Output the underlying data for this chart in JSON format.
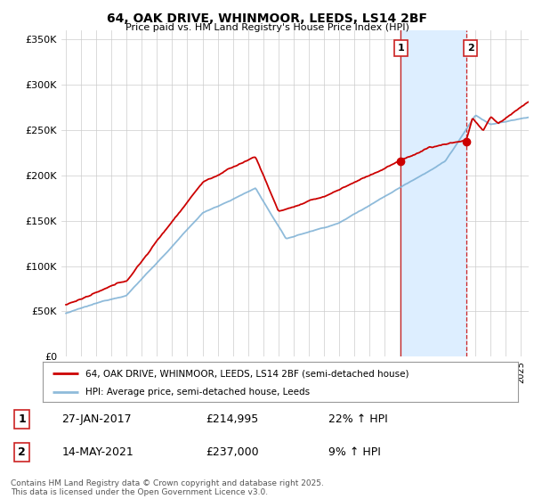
{
  "title": "64, OAK DRIVE, WHINMOOR, LEEDS, LS14 2BF",
  "subtitle": "Price paid vs. HM Land Registry's House Price Index (HPI)",
  "legend_line1": "64, OAK DRIVE, WHINMOOR, LEEDS, LS14 2BF (semi-detached house)",
  "legend_line2": "HPI: Average price, semi-detached house, Leeds",
  "annotation1_label": "1",
  "annotation1_date": "27-JAN-2017",
  "annotation1_price": "£214,995",
  "annotation1_hpi": "22% ↑ HPI",
  "annotation2_label": "2",
  "annotation2_date": "14-MAY-2021",
  "annotation2_price": "£237,000",
  "annotation2_hpi": "9% ↑ HPI",
  "footer": "Contains HM Land Registry data © Crown copyright and database right 2025.\nThis data is licensed under the Open Government Licence v3.0.",
  "red_color": "#cc0000",
  "blue_color": "#7bafd4",
  "blue_shade_color": "#ddeeff",
  "grid_color": "#cccccc",
  "background_color": "#ffffff",
  "vline1_color": "#cc2222",
  "vline2_color": "#cc2222",
  "ylim": [
    0,
    360000
  ],
  "yticks": [
    0,
    50000,
    100000,
    150000,
    200000,
    250000,
    300000,
    350000
  ],
  "year_start": 1995,
  "year_end": 2025,
  "marker1_year": 2017.07,
  "marker1_value": 214995,
  "marker2_year": 2021.37,
  "marker2_value": 237000
}
